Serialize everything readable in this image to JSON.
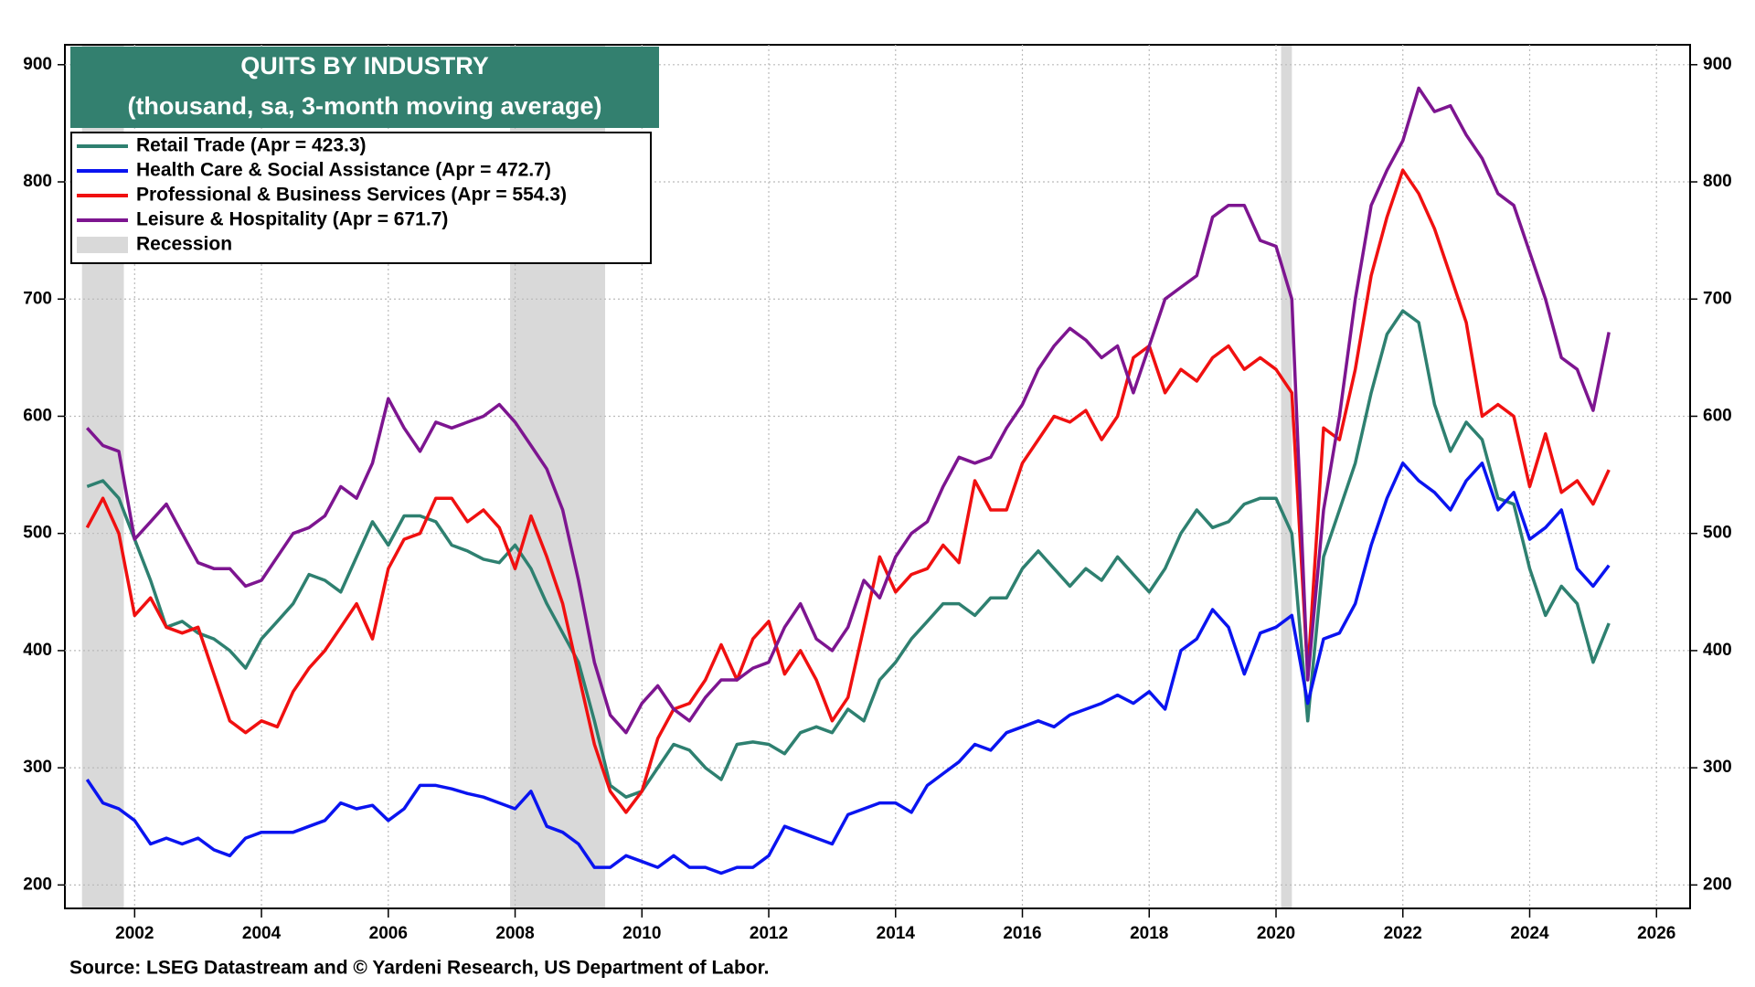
{
  "chart_data": {
    "type": "line",
    "title": "QUITS BY INDUSTRY",
    "subtitle": "(thousand, sa, 3-month moving average)",
    "source": "Source: LSEG Datastream and © Yardeni Research, US Department of Labor.",
    "recession_label": "Recession",
    "recession_color": "#d9d9d9",
    "recessions": [
      [
        2001.17,
        2001.83
      ],
      [
        2007.92,
        2009.42
      ],
      [
        2020.08,
        2020.25
      ]
    ],
    "xlim": [
      2000.9,
      2026.53
    ],
    "xticks": [
      2002,
      2004,
      2006,
      2008,
      2010,
      2012,
      2014,
      2016,
      2018,
      2020,
      2022,
      2024,
      2026
    ],
    "ylim": [
      180,
      917
    ],
    "yticks": [
      200,
      300,
      400,
      500,
      600,
      700,
      800,
      900
    ],
    "grid": true,
    "legend": "upper left",
    "x": [
      2001.25,
      2001.5,
      2001.75,
      2002,
      2002.25,
      2002.5,
      2002.75,
      2003,
      2003.25,
      2003.5,
      2003.75,
      2004,
      2004.25,
      2004.5,
      2004.75,
      2005,
      2005.25,
      2005.5,
      2005.75,
      2006,
      2006.25,
      2006.5,
      2006.75,
      2007,
      2007.25,
      2007.5,
      2007.75,
      2008,
      2008.25,
      2008.5,
      2008.75,
      2009,
      2009.25,
      2009.5,
      2009.75,
      2010,
      2010.25,
      2010.5,
      2010.75,
      2011,
      2011.25,
      2011.5,
      2011.75,
      2012,
      2012.25,
      2012.5,
      2012.75,
      2013,
      2013.25,
      2013.5,
      2013.75,
      2014,
      2014.25,
      2014.5,
      2014.75,
      2015,
      2015.25,
      2015.5,
      2015.75,
      2016,
      2016.25,
      2016.5,
      2016.75,
      2017,
      2017.25,
      2017.5,
      2017.75,
      2018,
      2018.25,
      2018.5,
      2018.75,
      2019,
      2019.25,
      2019.5,
      2019.75,
      2020,
      2020.25,
      2020.5,
      2020.75,
      2021,
      2021.25,
      2021.5,
      2021.75,
      2022,
      2022.25,
      2022.5,
      2022.75,
      2023,
      2023.25,
      2023.5,
      2023.75,
      2024,
      2024.25,
      2024.5,
      2024.75,
      2025,
      2025.25
    ],
    "series": [
      {
        "name": "Retail Trade (Apr = 423.3)",
        "color": "#2e8070",
        "values": [
          540,
          545,
          530,
          495,
          460,
          420,
          425,
          415,
          410,
          400,
          385,
          410,
          425,
          440,
          465,
          460,
          450,
          480,
          510,
          490,
          515,
          515,
          510,
          490,
          485,
          478,
          475,
          490,
          470,
          440,
          415,
          390,
          340,
          285,
          275,
          280,
          300,
          320,
          315,
          300,
          290,
          320,
          322,
          320,
          312,
          330,
          335,
          330,
          350,
          340,
          375,
          390,
          410,
          425,
          440,
          440,
          430,
          445,
          445,
          470,
          485,
          470,
          455,
          470,
          460,
          480,
          465,
          450,
          470,
          500,
          520,
          505,
          510,
          525,
          530,
          530,
          500,
          340,
          480,
          520,
          560,
          620,
          670,
          690,
          680,
          610,
          570,
          595,
          580,
          530,
          525,
          470,
          430,
          455,
          440,
          390,
          423.3
        ]
      },
      {
        "name": "Health Care & Social Assistance (Apr = 472.7)",
        "color": "#0a14f0",
        "values": [
          290,
          270,
          265,
          255,
          235,
          240,
          235,
          240,
          230,
          225,
          240,
          245,
          245,
          245,
          250,
          255,
          270,
          265,
          268,
          255,
          265,
          285,
          285,
          282,
          278,
          275,
          270,
          265,
          280,
          250,
          245,
          235,
          215,
          215,
          225,
          220,
          215,
          225,
          215,
          215,
          210,
          215,
          215,
          225,
          250,
          245,
          240,
          235,
          260,
          265,
          270,
          270,
          262,
          285,
          295,
          305,
          320,
          315,
          330,
          335,
          340,
          335,
          345,
          350,
          355,
          362,
          355,
          365,
          350,
          400,
          410,
          435,
          420,
          380,
          415,
          420,
          430,
          355,
          410,
          415,
          440,
          490,
          530,
          560,
          545,
          535,
          520,
          545,
          560,
          520,
          535,
          495,
          505,
          520,
          470,
          455,
          472.7
        ]
      },
      {
        "name": "Professional & Business Services (Apr = 554.3)",
        "color": "#f01010",
        "values": [
          505,
          530,
          500,
          430,
          445,
          420,
          415,
          420,
          380,
          340,
          330,
          340,
          335,
          365,
          385,
          400,
          420,
          440,
          410,
          470,
          495,
          500,
          530,
          530,
          510,
          520,
          505,
          470,
          515,
          480,
          440,
          380,
          320,
          280,
          262,
          280,
          325,
          350,
          355,
          375,
          405,
          375,
          410,
          425,
          380,
          400,
          375,
          340,
          360,
          420,
          480,
          450,
          465,
          470,
          490,
          475,
          545,
          520,
          520,
          560,
          580,
          600,
          595,
          605,
          580,
          600,
          650,
          660,
          620,
          640,
          630,
          650,
          660,
          640,
          650,
          640,
          620,
          380,
          590,
          580,
          640,
          720,
          770,
          810,
          790,
          760,
          720,
          680,
          600,
          610,
          600,
          540,
          585,
          535,
          545,
          525,
          554.3
        ]
      },
      {
        "name": "Leisure & Hospitality (Apr = 671.7)",
        "color": "#7d1590",
        "values": [
          590,
          575,
          570,
          495,
          510,
          525,
          500,
          475,
          470,
          470,
          455,
          460,
          480,
          500,
          505,
          515,
          540,
          530,
          560,
          615,
          590,
          570,
          595,
          590,
          595,
          600,
          610,
          595,
          575,
          555,
          520,
          460,
          390,
          345,
          330,
          355,
          370,
          350,
          340,
          360,
          375,
          375,
          385,
          390,
          420,
          440,
          410,
          400,
          420,
          460,
          445,
          480,
          500,
          510,
          540,
          565,
          560,
          565,
          590,
          610,
          640,
          660,
          675,
          665,
          650,
          660,
          620,
          660,
          700,
          710,
          720,
          770,
          780,
          780,
          750,
          745,
          700,
          375,
          520,
          600,
          700,
          780,
          810,
          835,
          880,
          860,
          865,
          840,
          820,
          790,
          780,
          740,
          700,
          650,
          640,
          605,
          671.7
        ]
      }
    ]
  }
}
